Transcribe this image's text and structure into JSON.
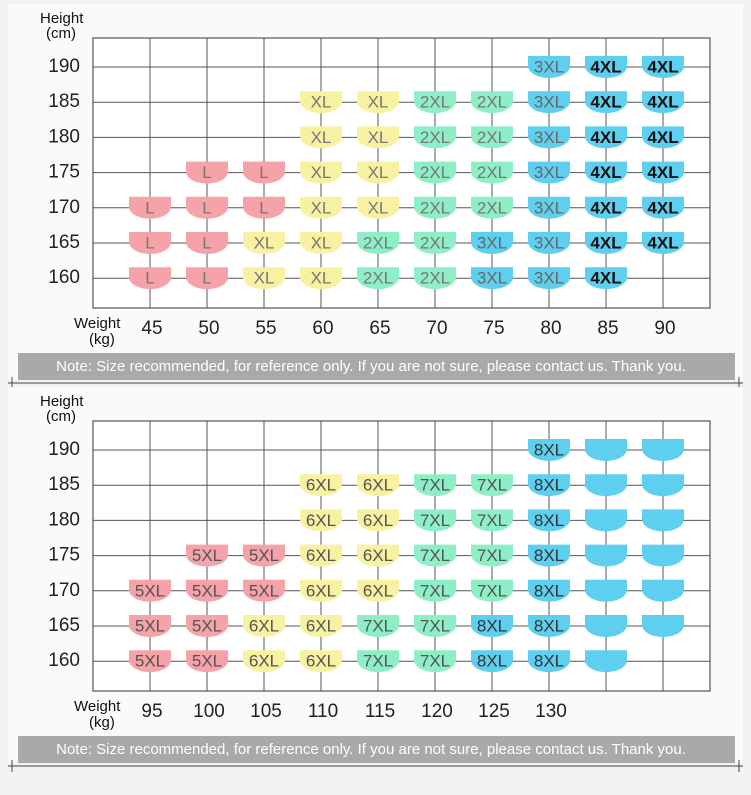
{
  "styles": {
    "L": {
      "fill": "#f5a3a8",
      "text": "#777"
    },
    "XL": {
      "fill": "#f8f1a2",
      "text": "#777"
    },
    "2XL": {
      "fill": "#8eefc6",
      "text": "#777"
    },
    "3XL": {
      "fill": "#5fcff0",
      "text": "#666"
    },
    "4XL": {
      "fill": "#5fcff0",
      "text": "#111",
      "bold": true
    },
    "5XL": {
      "fill": "#f5a3a8",
      "text": "#555"
    },
    "6XL": {
      "fill": "#f8f1a2",
      "text": "#555"
    },
    "7XL": {
      "fill": "#8eefc6",
      "text": "#555"
    },
    "8XL": {
      "fill": "#5fcff0",
      "text": "#333"
    }
  },
  "panels": [
    {
      "y_title": [
        "Height",
        "(cm)"
      ],
      "x_title": [
        "Weight",
        "(kg)"
      ],
      "heights": [
        "190",
        "185",
        "180",
        "175",
        "170",
        "165",
        "160"
      ],
      "weights": [
        "45",
        "50",
        "55",
        "60",
        "65",
        "70",
        "75",
        "80",
        "85",
        "90"
      ],
      "rows": [
        [
          null,
          null,
          null,
          null,
          null,
          null,
          null,
          "3XL",
          "4XL",
          "4XL"
        ],
        [
          null,
          null,
          null,
          "XL",
          "XL",
          "2XL",
          "2XL",
          "3XL",
          "4XL",
          "4XL"
        ],
        [
          null,
          null,
          null,
          "XL",
          "XL",
          "2XL",
          "2XL",
          "3XL",
          "4XL",
          "4XL"
        ],
        [
          null,
          "L",
          "L",
          "XL",
          "XL",
          "2XL",
          "2XL",
          "3XL",
          "4XL",
          "4XL"
        ],
        [
          "L",
          "L",
          "L",
          "XL",
          "XL",
          "2XL",
          "2XL",
          "3XL",
          "4XL",
          "4XL"
        ],
        [
          "L",
          "L",
          "XL",
          "XL",
          "2XL",
          "2XL",
          "3XL",
          "3XL",
          "4XL",
          "4XL"
        ],
        [
          "L",
          "L",
          "XL",
          "XL",
          "2XL",
          "2XL",
          "3XL",
          "3XL",
          "4XL",
          null
        ]
      ],
      "note": "Note: Size recommended, for reference only. If you are not sure, please contact us. Thank you."
    },
    {
      "y_title": [
        "Height",
        "(cm)"
      ],
      "x_title": [
        "Weight",
        "(kg)"
      ],
      "heights": [
        "190",
        "185",
        "180",
        "175",
        "170",
        "165",
        "160"
      ],
      "weights": [
        "95",
        "100",
        "105",
        "110",
        "115",
        "120",
        "125",
        "130",
        null,
        null
      ],
      "rows": [
        [
          null,
          null,
          null,
          null,
          null,
          null,
          null,
          "8XL",
          {
            "color": "#5fcff0"
          },
          {
            "color": "#5fcff0"
          }
        ],
        [
          null,
          null,
          null,
          "6XL",
          "6XL",
          "7XL",
          "7XL",
          "8XL",
          {
            "color": "#5fcff0"
          },
          {
            "color": "#5fcff0"
          }
        ],
        [
          null,
          null,
          null,
          "6XL",
          "6XL",
          "7XL",
          "7XL",
          "8XL",
          {
            "color": "#5fcff0"
          },
          {
            "color": "#5fcff0"
          }
        ],
        [
          null,
          "5XL",
          "5XL",
          "6XL",
          "6XL",
          "7XL",
          "7XL",
          "8XL",
          {
            "color": "#5fcff0"
          },
          {
            "color": "#5fcff0"
          }
        ],
        [
          "5XL",
          "5XL",
          "5XL",
          "6XL",
          "6XL",
          "7XL",
          "7XL",
          "8XL",
          {
            "color": "#5fcff0"
          },
          {
            "color": "#5fcff0"
          }
        ],
        [
          "5XL",
          "5XL",
          "6XL",
          "6XL",
          "7XL",
          "7XL",
          "8XL",
          "8XL",
          {
            "color": "#5fcff0"
          },
          {
            "color": "#5fcff0"
          }
        ],
        [
          "5XL",
          "5XL",
          "6XL",
          "6XL",
          "7XL",
          "7XL",
          "8XL",
          "8XL",
          {
            "color": "#5fcff0"
          },
          null
        ]
      ],
      "note": "Note: Size recommended, for reference only. If you are not sure, please contact us. Thank you."
    }
  ]
}
